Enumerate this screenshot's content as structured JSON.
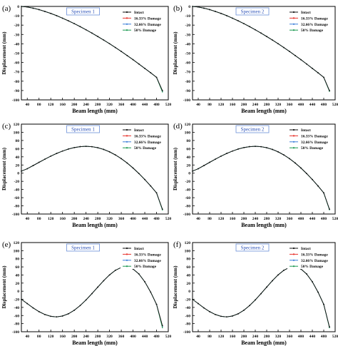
{
  "chart_data": [
    {
      "panel_label": "(a)",
      "title": "Specimen 1",
      "type": "line",
      "xlabel": "Beam length (mm)",
      "ylabel": "Displacement (mm)",
      "xlim": [
        20,
        520
      ],
      "ylim": [
        -100,
        0
      ],
      "xticks": [
        40,
        80,
        120,
        160,
        200,
        240,
        280,
        320,
        360,
        400,
        440,
        480,
        520
      ],
      "yticks": [
        0,
        -10,
        -20,
        -30,
        -40,
        -50,
        -60,
        -70,
        -80,
        -90,
        -100
      ],
      "x": [
        20,
        40,
        60,
        80,
        100,
        120,
        140,
        160,
        180,
        200,
        220,
        240,
        260,
        280,
        300,
        320,
        340,
        360,
        380,
        400,
        420,
        440,
        460,
        480,
        500
      ],
      "series": [
        {
          "name": "Intact",
          "color": "#111111",
          "values": [
            0.0,
            -0.6,
            -1.9,
            -3.4,
            -5.4,
            -7.5,
            -9.9,
            -12.6,
            -15.4,
            -18.4,
            -21.6,
            -25.0,
            -28.5,
            -32.2,
            -36.0,
            -39.9,
            -44.0,
            -48.2,
            -52.6,
            -57.0,
            -61.6,
            -66.3,
            -71.0,
            -75.9,
            -90.0
          ]
        },
        {
          "name": "16.33% Damage",
          "color": "#e8312a",
          "values": [
            0.0,
            -0.6,
            -1.9,
            -3.4,
            -5.4,
            -7.5,
            -9.9,
            -12.6,
            -15.4,
            -18.4,
            -21.6,
            -25.0,
            -28.5,
            -32.2,
            -36.0,
            -39.9,
            -44.0,
            -48.2,
            -52.6,
            -57.0,
            -61.6,
            -66.3,
            -71.0,
            -75.9,
            -91.0
          ]
        },
        {
          "name": "32.66% Damage",
          "color": "#3a7dd8",
          "values": [
            0.0,
            -0.6,
            -1.9,
            -3.4,
            -5.4,
            -7.5,
            -9.9,
            -12.6,
            -15.4,
            -18.4,
            -21.6,
            -25.0,
            -28.5,
            -32.2,
            -36.0,
            -39.9,
            -44.0,
            -48.2,
            -52.6,
            -57.0,
            -61.6,
            -66.3,
            -71.0,
            -75.9,
            -91.0
          ]
        },
        {
          "name": "50% Damage",
          "color": "#1a9850",
          "values": [
            0.0,
            -0.6,
            -1.9,
            -3.4,
            -5.4,
            -7.5,
            -9.9,
            -12.6,
            -15.4,
            -18.4,
            -21.6,
            -25.0,
            -28.5,
            -32.2,
            -36.0,
            -39.9,
            -44.0,
            -48.2,
            -52.6,
            -57.0,
            -61.6,
            -66.3,
            -71.0,
            -75.9,
            -91.5
          ]
        }
      ]
    },
    {
      "panel_label": "(b)",
      "title": "Specimen 2",
      "type": "line",
      "xlabel": "Beam length (mm)",
      "ylabel": "Displacement (mm)",
      "xlim": [
        20,
        520
      ],
      "ylim": [
        -100,
        0
      ],
      "xticks": [
        40,
        80,
        120,
        160,
        200,
        240,
        280,
        320,
        360,
        400,
        440,
        480,
        520
      ],
      "yticks": [
        0,
        -10,
        -20,
        -30,
        -40,
        -50,
        -60,
        -70,
        -80,
        -90,
        -100
      ],
      "x": [
        20,
        40,
        60,
        80,
        100,
        120,
        140,
        160,
        180,
        200,
        220,
        240,
        260,
        280,
        300,
        320,
        340,
        360,
        380,
        400,
        420,
        440,
        460,
        480,
        500
      ],
      "series": [
        {
          "name": "Intact",
          "color": "#111111",
          "values": [
            0.0,
            -0.6,
            -1.9,
            -3.4,
            -5.4,
            -7.5,
            -9.9,
            -12.6,
            -15.4,
            -18.4,
            -21.6,
            -25.0,
            -28.5,
            -32.2,
            -36.0,
            -39.9,
            -44.0,
            -48.2,
            -52.6,
            -57.0,
            -61.6,
            -66.3,
            -71.0,
            -75.9,
            -90.0
          ]
        },
        {
          "name": "16.33% Damage",
          "color": "#e8312a",
          "values": [
            0.0,
            -0.6,
            -1.9,
            -3.4,
            -5.4,
            -7.5,
            -9.9,
            -12.6,
            -15.4,
            -18.4,
            -21.6,
            -25.0,
            -28.5,
            -32.2,
            -36.0,
            -39.9,
            -44.0,
            -48.2,
            -52.6,
            -57.0,
            -61.6,
            -66.3,
            -71.0,
            -75.9,
            -90.3
          ]
        },
        {
          "name": "32.66% Damage",
          "color": "#3a7dd8",
          "values": [
            0.0,
            -0.6,
            -1.9,
            -3.4,
            -5.4,
            -7.5,
            -9.9,
            -12.6,
            -15.4,
            -18.4,
            -21.6,
            -25.0,
            -28.5,
            -32.2,
            -36.0,
            -39.9,
            -44.0,
            -48.2,
            -52.6,
            -57.0,
            -61.6,
            -66.3,
            -71.0,
            -75.9,
            -90.5
          ]
        },
        {
          "name": "50% Damage",
          "color": "#1a9850",
          "values": [
            0.0,
            -0.6,
            -1.9,
            -3.4,
            -5.4,
            -7.5,
            -9.9,
            -12.6,
            -15.4,
            -18.4,
            -21.6,
            -25.0,
            -28.5,
            -32.2,
            -36.0,
            -39.9,
            -44.0,
            -48.2,
            -52.6,
            -57.0,
            -61.6,
            -66.3,
            -71.0,
            -75.9,
            -90.8
          ]
        }
      ]
    },
    {
      "panel_label": "(c)",
      "title": "Specimen 1",
      "type": "line",
      "xlabel": "Beam length (mm)",
      "ylabel": "Displacement (mm)",
      "xlim": [
        20,
        520
      ],
      "ylim": [
        -100,
        120
      ],
      "xticks": [
        40,
        80,
        120,
        160,
        200,
        240,
        280,
        320,
        360,
        400,
        440,
        480,
        520
      ],
      "yticks": [
        120,
        100,
        80,
        60,
        40,
        20,
        0,
        -20,
        -40,
        -60,
        -80,
        -100
      ],
      "x": [
        20,
        40,
        60,
        80,
        100,
        120,
        140,
        160,
        180,
        200,
        220,
        240,
        260,
        280,
        300,
        320,
        340,
        360,
        380,
        400,
        420,
        440,
        460,
        480,
        500
      ],
      "series": [
        {
          "name": "Intact",
          "color": "#111111",
          "values": [
            5.0,
            10.9,
            18.6,
            26.5,
            34.2,
            41.6,
            48.3,
            54.1,
            59.0,
            62.6,
            64.9,
            65.7,
            64.8,
            62.3,
            58.1,
            52.2,
            44.6,
            35.5,
            24.8,
            12.6,
            -0.9,
            -15.6,
            -31.4,
            -48.2,
            -88.0
          ]
        },
        {
          "name": "16.33% Damage",
          "color": "#e8312a",
          "values": [
            5.0,
            10.9,
            18.6,
            26.5,
            34.2,
            41.6,
            48.3,
            54.1,
            59.0,
            62.6,
            64.9,
            65.7,
            64.8,
            62.3,
            58.1,
            52.2,
            44.6,
            35.5,
            24.8,
            12.6,
            -0.9,
            -15.6,
            -31.4,
            -48.2,
            -89.0
          ]
        },
        {
          "name": "32.66% Damage",
          "color": "#3a7dd8",
          "values": [
            5.0,
            10.9,
            18.6,
            26.5,
            34.2,
            41.6,
            48.3,
            54.1,
            59.0,
            62.6,
            64.9,
            65.7,
            64.8,
            62.3,
            58.1,
            52.2,
            44.6,
            35.5,
            24.8,
            12.6,
            -0.9,
            -15.6,
            -31.4,
            -48.2,
            -89.5
          ]
        },
        {
          "name": "50% Damage",
          "color": "#1a9850",
          "values": [
            5.0,
            10.9,
            18.6,
            26.5,
            34.2,
            41.6,
            48.3,
            54.1,
            59.0,
            62.6,
            64.9,
            65.7,
            64.8,
            62.3,
            58.1,
            52.2,
            44.6,
            35.5,
            24.8,
            12.6,
            -0.9,
            -15.6,
            -31.4,
            -48.2,
            -90.0
          ]
        }
      ]
    },
    {
      "panel_label": "(d)",
      "title": "Specimen 2",
      "type": "line",
      "xlabel": "Beam length (mm)",
      "ylabel": "Displacement (mm)",
      "xlim": [
        20,
        520
      ],
      "ylim": [
        -100,
        120
      ],
      "xticks": [
        40,
        80,
        120,
        160,
        200,
        240,
        280,
        320,
        360,
        400,
        440,
        480,
        520
      ],
      "yticks": [
        120,
        100,
        80,
        60,
        40,
        20,
        0,
        -20,
        -40,
        -60,
        -80,
        -100
      ],
      "x": [
        20,
        40,
        60,
        80,
        100,
        120,
        140,
        160,
        180,
        200,
        220,
        240,
        260,
        280,
        300,
        320,
        340,
        360,
        380,
        400,
        420,
        440,
        460,
        480,
        500
      ],
      "series": [
        {
          "name": "Intact",
          "color": "#111111",
          "values": [
            5.0,
            10.9,
            18.6,
            26.5,
            34.2,
            41.6,
            48.3,
            54.1,
            59.0,
            62.6,
            64.9,
            65.7,
            64.8,
            62.3,
            58.1,
            52.2,
            44.6,
            35.5,
            24.8,
            12.6,
            -0.9,
            -15.6,
            -31.4,
            -48.2,
            -88.0
          ]
        },
        {
          "name": "16.33% Damage",
          "color": "#e8312a",
          "values": [
            5.0,
            10.9,
            18.6,
            26.5,
            34.2,
            41.6,
            48.3,
            54.1,
            59.0,
            62.6,
            64.9,
            65.7,
            64.8,
            62.3,
            58.1,
            52.2,
            44.6,
            35.5,
            24.8,
            12.6,
            -0.9,
            -15.6,
            -31.4,
            -48.2,
            -88.5
          ]
        },
        {
          "name": "32.66% Damage",
          "color": "#3a7dd8",
          "values": [
            5.0,
            10.9,
            18.6,
            26.5,
            34.2,
            41.6,
            48.3,
            54.1,
            59.0,
            62.6,
            64.9,
            65.7,
            64.8,
            62.3,
            58.1,
            52.2,
            44.6,
            35.5,
            24.8,
            12.6,
            -0.9,
            -15.6,
            -31.4,
            -48.2,
            -89.0
          ]
        },
        {
          "name": "50% Damage",
          "color": "#1a9850",
          "values": [
            5.0,
            10.9,
            18.6,
            26.5,
            34.2,
            41.6,
            48.3,
            54.1,
            59.0,
            62.6,
            64.9,
            65.7,
            64.8,
            62.3,
            58.1,
            52.2,
            44.6,
            35.5,
            24.8,
            12.6,
            -0.9,
            -15.6,
            -31.4,
            -48.2,
            -89.5
          ]
        }
      ]
    },
    {
      "panel_label": "(e)",
      "title": "Specimen 1",
      "type": "line",
      "xlabel": "Beam length (mm)",
      "ylabel": "Displacement (mm)",
      "xlim": [
        20,
        520
      ],
      "ylim": [
        -100,
        120
      ],
      "xticks": [
        40,
        80,
        120,
        160,
        200,
        240,
        280,
        320,
        360,
        400,
        440,
        480,
        520
      ],
      "yticks": [
        120,
        100,
        80,
        60,
        40,
        20,
        0,
        -20,
        -40,
        -60,
        -80,
        -100
      ],
      "x": [
        20,
        40,
        60,
        80,
        100,
        120,
        140,
        160,
        180,
        200,
        220,
        240,
        260,
        280,
        300,
        320,
        340,
        360,
        380,
        400,
        420,
        440,
        460,
        480,
        500
      ],
      "series": [
        {
          "name": "Intact",
          "color": "#111111",
          "values": [
            -20.0,
            -30.6,
            -41.2,
            -50.4,
            -57.5,
            -62.0,
            -63.3,
            -61.2,
            -55.7,
            -47.0,
            -35.4,
            -21.5,
            -6.0,
            10.1,
            25.9,
            40.2,
            51.6,
            58.6,
            60.0,
            54.8,
            42.5,
            23.3,
            -2.3,
            -32.5,
            -85.0
          ]
        },
        {
          "name": "16.33% Damage",
          "color": "#e8312a",
          "values": [
            -20.0,
            -30.6,
            -41.2,
            -50.4,
            -57.5,
            -62.0,
            -63.3,
            -61.2,
            -55.7,
            -47.0,
            -35.4,
            -21.5,
            -6.0,
            10.1,
            25.9,
            40.2,
            51.6,
            58.6,
            60.0,
            54.8,
            42.5,
            23.3,
            -2.3,
            -32.5,
            -86.0
          ]
        },
        {
          "name": "32.66% Damage",
          "color": "#3a7dd8",
          "values": [
            -20.0,
            -30.6,
            -41.2,
            -50.4,
            -57.5,
            -62.0,
            -63.3,
            -61.2,
            -55.7,
            -47.0,
            -35.4,
            -21.5,
            -6.0,
            10.1,
            25.9,
            40.2,
            51.6,
            58.6,
            60.0,
            54.8,
            42.5,
            23.3,
            -2.3,
            -32.5,
            -87.0
          ]
        },
        {
          "name": "50% Damage",
          "color": "#1a9850",
          "values": [
            -20.0,
            -30.6,
            -41.2,
            -50.4,
            -57.5,
            -62.0,
            -63.3,
            -61.2,
            -55.7,
            -47.0,
            -35.4,
            -21.5,
            -6.0,
            10.1,
            25.9,
            40.2,
            51.6,
            58.6,
            60.0,
            54.8,
            42.5,
            23.3,
            -2.3,
            -32.5,
            -90.0
          ]
        }
      ]
    },
    {
      "panel_label": "(f)",
      "title": "Specimen 2",
      "type": "line",
      "xlabel": "Beam length (mm)",
      "ylabel": "Displacement (mm)",
      "xlim": [
        20,
        520
      ],
      "ylim": [
        -100,
        120
      ],
      "xticks": [
        40,
        80,
        120,
        160,
        200,
        240,
        280,
        320,
        360,
        400,
        440,
        480,
        520
      ],
      "yticks": [
        120,
        100,
        80,
        60,
        40,
        20,
        0,
        -20,
        -40,
        -60,
        -80,
        -100
      ],
      "x": [
        20,
        40,
        60,
        80,
        100,
        120,
        140,
        160,
        180,
        200,
        220,
        240,
        260,
        280,
        300,
        320,
        340,
        360,
        380,
        400,
        420,
        440,
        460,
        480,
        500
      ],
      "series": [
        {
          "name": "Intact",
          "color": "#111111",
          "values": [
            -20.0,
            -30.6,
            -41.2,
            -50.4,
            -57.5,
            -62.0,
            -63.3,
            -61.2,
            -55.7,
            -47.0,
            -35.4,
            -21.5,
            -6.0,
            10.1,
            25.9,
            40.2,
            51.6,
            58.6,
            60.0,
            54.8,
            42.5,
            23.3,
            -2.3,
            -32.5,
            -88.0
          ]
        },
        {
          "name": "16.33% Damage",
          "color": "#e8312a",
          "values": [
            -20.0,
            -30.6,
            -41.2,
            -50.4,
            -57.5,
            -62.0,
            -63.3,
            -61.2,
            -55.7,
            -47.0,
            -35.4,
            -21.5,
            -6.0,
            10.1,
            25.9,
            40.2,
            51.6,
            58.6,
            60.0,
            54.8,
            42.5,
            23.3,
            -2.3,
            -32.5,
            -88.5
          ]
        },
        {
          "name": "32.66% Damage",
          "color": "#3a7dd8",
          "values": [
            -20.0,
            -30.6,
            -41.2,
            -50.4,
            -57.5,
            -62.0,
            -63.3,
            -61.2,
            -55.7,
            -47.0,
            -35.4,
            -21.5,
            -6.0,
            10.1,
            25.9,
            40.2,
            51.6,
            58.6,
            60.0,
            54.8,
            42.5,
            23.3,
            -2.3,
            -32.5,
            -89.0
          ]
        },
        {
          "name": "50% Damage",
          "color": "#1a9850",
          "values": [
            -20.0,
            -30.6,
            -41.2,
            -50.4,
            -57.5,
            -62.0,
            -63.3,
            -61.2,
            -55.7,
            -47.0,
            -35.4,
            -21.5,
            -6.0,
            10.1,
            25.9,
            40.2,
            51.6,
            58.6,
            60.0,
            54.8,
            42.5,
            23.3,
            -2.3,
            -32.5,
            -90.0
          ]
        }
      ]
    }
  ]
}
